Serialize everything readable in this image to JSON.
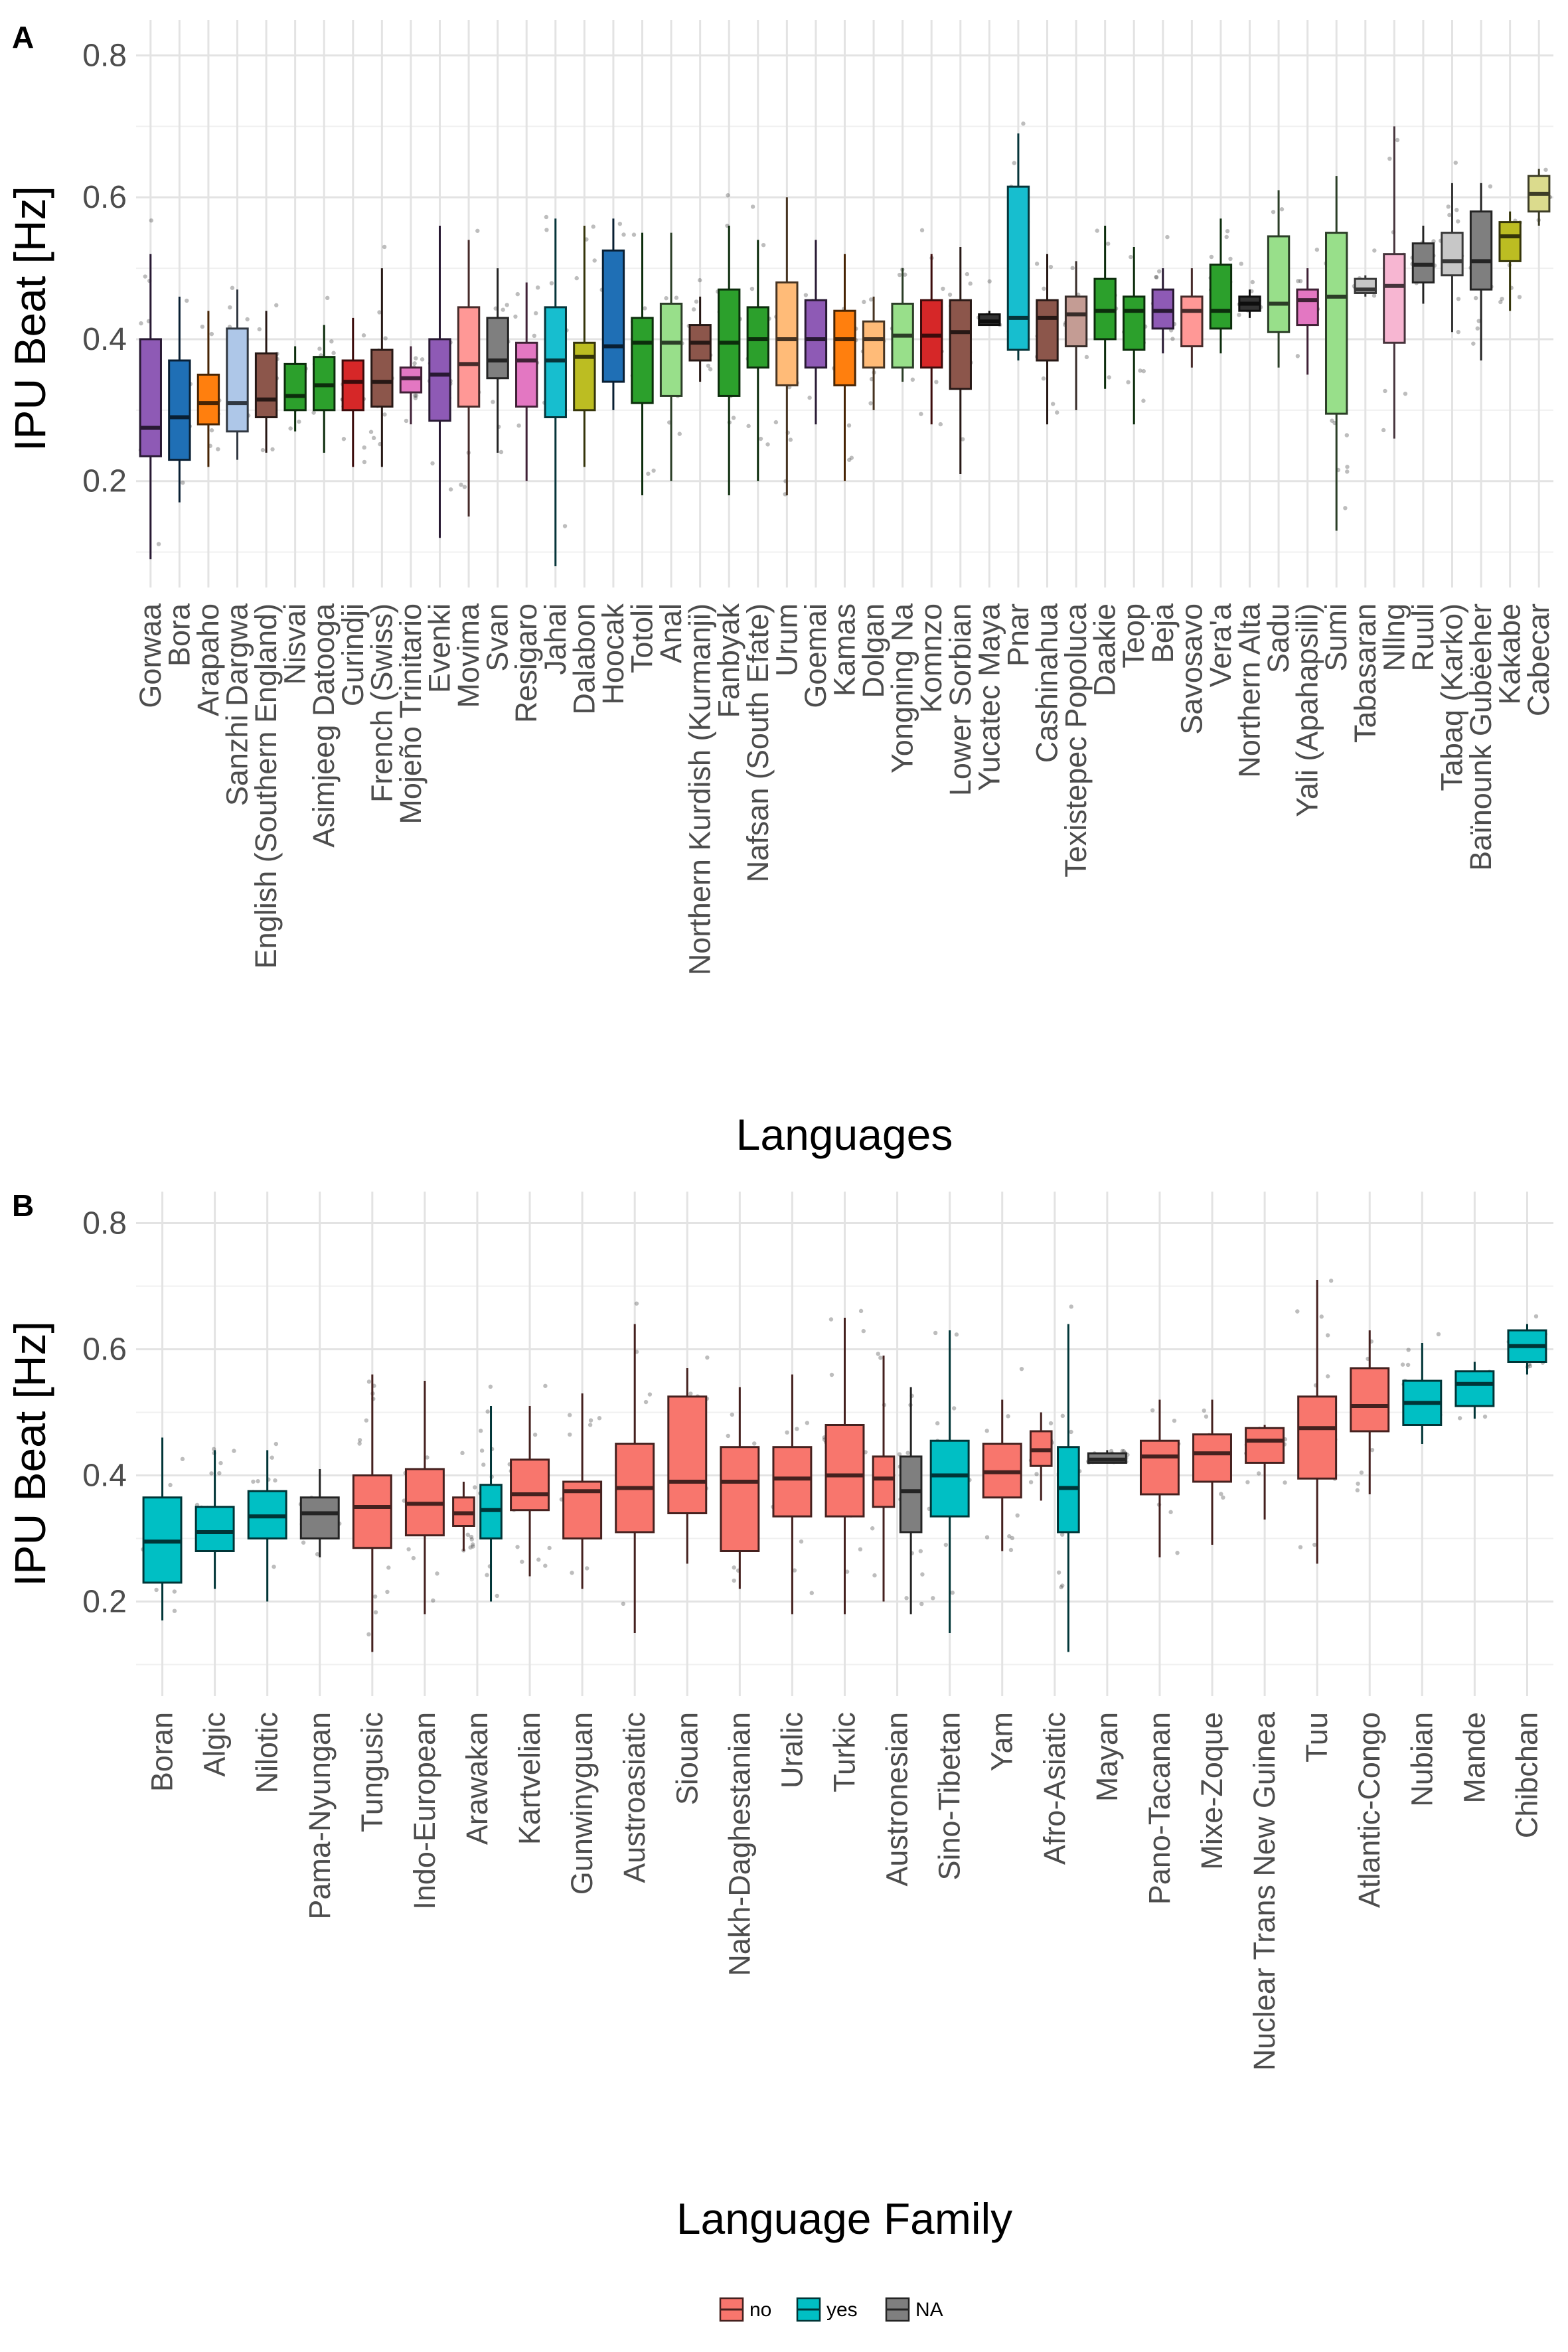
{
  "chart_data": [
    {
      "panel": "A",
      "type": "box",
      "xlabel": "Languages",
      "ylabel": "IPU Beat [Hz]",
      "ylim": [
        0.05,
        0.85
      ],
      "yticks": [
        0.2,
        0.4,
        0.6,
        0.8
      ],
      "grid": true,
      "boxes": [
        {
          "label": "Gorwaa",
          "color": "#8E5AB5",
          "min": 0.09,
          "q1": 0.235,
          "median": 0.275,
          "q3": 0.4,
          "max": 0.52
        },
        {
          "label": "Bora",
          "color": "#1F6FB5",
          "min": 0.17,
          "q1": 0.23,
          "median": 0.29,
          "q3": 0.37,
          "max": 0.46
        },
        {
          "label": "Arapaho",
          "color": "#FF7F0E",
          "min": 0.22,
          "q1": 0.28,
          "median": 0.31,
          "q3": 0.35,
          "max": 0.44
        },
        {
          "label": "Sanzhi Dargwa",
          "color": "#AEC7E8",
          "min": 0.23,
          "q1": 0.27,
          "median": 0.31,
          "q3": 0.415,
          "max": 0.47
        },
        {
          "label": "English (Southern England)",
          "color": "#8C564B",
          "min": 0.24,
          "q1": 0.29,
          "median": 0.315,
          "q3": 0.38,
          "max": 0.44
        },
        {
          "label": "Nisvai",
          "color": "#2CA02C",
          "min": 0.27,
          "q1": 0.3,
          "median": 0.32,
          "q3": 0.365,
          "max": 0.39
        },
        {
          "label": "Asimjeeg Datooga",
          "color": "#2CA02C",
          "min": 0.24,
          "q1": 0.3,
          "median": 0.335,
          "q3": 0.375,
          "max": 0.42
        },
        {
          "label": "Gurindji",
          "color": "#D62728",
          "min": 0.22,
          "q1": 0.3,
          "median": 0.34,
          "q3": 0.37,
          "max": 0.43
        },
        {
          "label": "French (Swiss)",
          "color": "#8C564B",
          "min": 0.22,
          "q1": 0.305,
          "median": 0.34,
          "q3": 0.385,
          "max": 0.5
        },
        {
          "label": "Mojeño Trinitario",
          "color": "#E377C2",
          "min": 0.28,
          "q1": 0.325,
          "median": 0.345,
          "q3": 0.36,
          "max": 0.39
        },
        {
          "label": "Evenki",
          "color": "#8E5AB5",
          "min": 0.12,
          "q1": 0.285,
          "median": 0.35,
          "q3": 0.4,
          "max": 0.56
        },
        {
          "label": "Movima",
          "color": "#FF9896",
          "min": 0.15,
          "q1": 0.305,
          "median": 0.365,
          "q3": 0.445,
          "max": 0.54
        },
        {
          "label": "Svan",
          "color": "#7F7F7F",
          "min": 0.24,
          "q1": 0.345,
          "median": 0.37,
          "q3": 0.43,
          "max": 0.5
        },
        {
          "label": "Resigaro",
          "color": "#E377C2",
          "min": 0.2,
          "q1": 0.305,
          "median": 0.37,
          "q3": 0.395,
          "max": 0.48
        },
        {
          "label": "Jahai",
          "color": "#17BECF",
          "min": 0.08,
          "q1": 0.29,
          "median": 0.37,
          "q3": 0.445,
          "max": 0.57
        },
        {
          "label": "Dalabon",
          "color": "#BCBD22",
          "min": 0.22,
          "q1": 0.3,
          "median": 0.375,
          "q3": 0.395,
          "max": 0.56
        },
        {
          "label": "Hoocak",
          "color": "#1F6FB5",
          "min": 0.3,
          "q1": 0.34,
          "median": 0.39,
          "q3": 0.525,
          "max": 0.57
        },
        {
          "label": "Totoli",
          "color": "#2CA02C",
          "min": 0.18,
          "q1": 0.31,
          "median": 0.395,
          "q3": 0.43,
          "max": 0.55
        },
        {
          "label": "Anal",
          "color": "#98DF8A",
          "min": 0.2,
          "q1": 0.32,
          "median": 0.395,
          "q3": 0.45,
          "max": 0.55
        },
        {
          "label": "Northern Kurdish (Kurmanji)",
          "color": "#8C564B",
          "min": 0.34,
          "q1": 0.37,
          "median": 0.395,
          "q3": 0.42,
          "max": 0.46
        },
        {
          "label": "Fanbyak",
          "color": "#2CA02C",
          "min": 0.18,
          "q1": 0.32,
          "median": 0.395,
          "q3": 0.47,
          "max": 0.56
        },
        {
          "label": "Nafsan (South Efate)",
          "color": "#2CA02C",
          "min": 0.2,
          "q1": 0.36,
          "median": 0.4,
          "q3": 0.445,
          "max": 0.54
        },
        {
          "label": "Urum",
          "color": "#FFBB78",
          "min": 0.18,
          "q1": 0.335,
          "median": 0.4,
          "q3": 0.48,
          "max": 0.6
        },
        {
          "label": "Goemai",
          "color": "#8E5AB5",
          "min": 0.28,
          "q1": 0.36,
          "median": 0.4,
          "q3": 0.455,
          "max": 0.54
        },
        {
          "label": "Kamas",
          "color": "#FF7F0E",
          "min": 0.2,
          "q1": 0.335,
          "median": 0.4,
          "q3": 0.44,
          "max": 0.52
        },
        {
          "label": "Dolgan",
          "color": "#FFBB78",
          "min": 0.3,
          "q1": 0.36,
          "median": 0.4,
          "q3": 0.425,
          "max": 0.46
        },
        {
          "label": "Yongning Na",
          "color": "#98DF8A",
          "min": 0.34,
          "q1": 0.36,
          "median": 0.405,
          "q3": 0.45,
          "max": 0.5
        },
        {
          "label": "Komnzo",
          "color": "#D62728",
          "min": 0.28,
          "q1": 0.36,
          "median": 0.405,
          "q3": 0.455,
          "max": 0.52
        },
        {
          "label": "Lower Sorbian",
          "color": "#8C564B",
          "min": 0.21,
          "q1": 0.33,
          "median": 0.41,
          "q3": 0.455,
          "max": 0.53
        },
        {
          "label": "Yucatec Maya",
          "color": "#333333",
          "min": 0.42,
          "q1": 0.42,
          "median": 0.425,
          "q3": 0.435,
          "max": 0.44
        },
        {
          "label": "Pnar",
          "color": "#17BECF",
          "min": 0.37,
          "q1": 0.385,
          "median": 0.43,
          "q3": 0.615,
          "max": 0.69
        },
        {
          "label": "Cashinahua",
          "color": "#8C564B",
          "min": 0.28,
          "q1": 0.37,
          "median": 0.43,
          "q3": 0.455,
          "max": 0.52
        },
        {
          "label": "Texistepec Popoluca",
          "color": "#C49C94",
          "min": 0.3,
          "q1": 0.39,
          "median": 0.435,
          "q3": 0.46,
          "max": 0.51
        },
        {
          "label": "Daakie",
          "color": "#2CA02C",
          "min": 0.33,
          "q1": 0.4,
          "median": 0.44,
          "q3": 0.485,
          "max": 0.56
        },
        {
          "label": "Teop",
          "color": "#2CA02C",
          "min": 0.28,
          "q1": 0.385,
          "median": 0.44,
          "q3": 0.46,
          "max": 0.53
        },
        {
          "label": "Beja",
          "color": "#8E5AB5",
          "min": 0.38,
          "q1": 0.415,
          "median": 0.44,
          "q3": 0.47,
          "max": 0.5
        },
        {
          "label": "Savosavo",
          "color": "#FF9896",
          "min": 0.36,
          "q1": 0.39,
          "median": 0.44,
          "q3": 0.46,
          "max": 0.5
        },
        {
          "label": "Vera'a",
          "color": "#2CA02C",
          "min": 0.38,
          "q1": 0.415,
          "median": 0.44,
          "q3": 0.505,
          "max": 0.57
        },
        {
          "label": "Northern Alta",
          "color": "#333333",
          "min": 0.43,
          "q1": 0.44,
          "median": 0.45,
          "q3": 0.46,
          "max": 0.47
        },
        {
          "label": "Sadu",
          "color": "#98DF8A",
          "min": 0.36,
          "q1": 0.41,
          "median": 0.45,
          "q3": 0.545,
          "max": 0.61
        },
        {
          "label": "Yali (Apahapsili)",
          "color": "#E377C2",
          "min": 0.35,
          "q1": 0.42,
          "median": 0.455,
          "q3": 0.47,
          "max": 0.5
        },
        {
          "label": "Sumi",
          "color": "#98DF8A",
          "min": 0.13,
          "q1": 0.295,
          "median": 0.46,
          "q3": 0.55,
          "max": 0.63
        },
        {
          "label": "Tabasaran",
          "color": "#C7C7C7",
          "min": 0.46,
          "q1": 0.465,
          "median": 0.47,
          "q3": 0.485,
          "max": 0.49
        },
        {
          "label": "Nllng",
          "color": "#F7B6D2",
          "min": 0.26,
          "q1": 0.395,
          "median": 0.475,
          "q3": 0.52,
          "max": 0.7
        },
        {
          "label": "Ruuli",
          "color": "#7F7F7F",
          "min": 0.45,
          "q1": 0.48,
          "median": 0.505,
          "q3": 0.535,
          "max": 0.56
        },
        {
          "label": "Tabaq (Karko)",
          "color": "#C7C7C7",
          "min": 0.41,
          "q1": 0.49,
          "median": 0.51,
          "q3": 0.55,
          "max": 0.62
        },
        {
          "label": "Baïnounk Gubëeher",
          "color": "#7F7F7F",
          "min": 0.37,
          "q1": 0.47,
          "median": 0.51,
          "q3": 0.58,
          "max": 0.62
        },
        {
          "label": "Kakabe",
          "color": "#BCBD22",
          "min": 0.44,
          "q1": 0.51,
          "median": 0.545,
          "q3": 0.565,
          "max": 0.58
        },
        {
          "label": "Cabecar",
          "color": "#DBDB8D",
          "min": 0.56,
          "q1": 0.58,
          "median": 0.605,
          "q3": 0.63,
          "max": 0.64
        }
      ]
    },
    {
      "panel": "B",
      "type": "box",
      "xlabel": "Language Family",
      "ylabel": "IPU Beat [Hz]",
      "ylim": [
        0.05,
        0.85
      ],
      "yticks": [
        0.2,
        0.4,
        0.6,
        0.8
      ],
      "grid": true,
      "legend": {
        "placement": "bottom",
        "entries": [
          {
            "label": "no",
            "color": "#F8766D"
          },
          {
            "label": "yes",
            "color": "#00BFC4"
          },
          {
            "label": "NA",
            "color": "#7F7F7F"
          }
        ]
      },
      "categories": [
        "Boran",
        "Algic",
        "Nilotic",
        "Pama-Nyungan",
        "Tungusic",
        "Indo-European",
        "Arawakan",
        "Kartvelian",
        "Gunwinyguan",
        "Austroasiatic",
        "Siouan",
        "Nakh-Daghestanian",
        "Uralic",
        "Turkic",
        "Austronesian",
        "Sino-Tibetan",
        "Yam",
        "Afro-Asiatic",
        "Mayan",
        "Pano-Tacanan",
        "Mixe-Zoque",
        "Nuclear Trans New Guinea",
        "Tuu",
        "Atlantic-Congo",
        "Nubian",
        "Mande",
        "Chibchan"
      ],
      "boxes": [
        {
          "cat": 0,
          "group": "yes",
          "min": 0.17,
          "q1": 0.23,
          "median": 0.295,
          "q3": 0.365,
          "max": 0.46
        },
        {
          "cat": 1,
          "group": "yes",
          "min": 0.22,
          "q1": 0.28,
          "median": 0.31,
          "q3": 0.35,
          "max": 0.44
        },
        {
          "cat": 2,
          "group": "yes",
          "min": 0.2,
          "q1": 0.3,
          "median": 0.335,
          "q3": 0.375,
          "max": 0.44
        },
        {
          "cat": 3,
          "group": "NA",
          "min": 0.27,
          "q1": 0.3,
          "median": 0.34,
          "q3": 0.365,
          "max": 0.41
        },
        {
          "cat": 4,
          "group": "no",
          "min": 0.12,
          "q1": 0.285,
          "median": 0.35,
          "q3": 0.4,
          "max": 0.56
        },
        {
          "cat": 5,
          "group": "no",
          "min": 0.18,
          "q1": 0.305,
          "median": 0.355,
          "q3": 0.41,
          "max": 0.55
        },
        {
          "cat": 6,
          "group": "no",
          "min": 0.28,
          "q1": 0.32,
          "median": 0.34,
          "q3": 0.365,
          "max": 0.39,
          "offset": -0.26
        },
        {
          "cat": 6,
          "group": "yes",
          "min": 0.2,
          "q1": 0.3,
          "median": 0.345,
          "q3": 0.385,
          "max": 0.51,
          "offset": 0.26
        },
        {
          "cat": 7,
          "group": "no",
          "min": 0.24,
          "q1": 0.345,
          "median": 0.37,
          "q3": 0.425,
          "max": 0.51
        },
        {
          "cat": 8,
          "group": "no",
          "min": 0.22,
          "q1": 0.3,
          "median": 0.375,
          "q3": 0.39,
          "max": 0.53
        },
        {
          "cat": 9,
          "group": "no",
          "min": 0.15,
          "q1": 0.31,
          "median": 0.38,
          "q3": 0.45,
          "max": 0.64
        },
        {
          "cat": 10,
          "group": "no",
          "min": 0.26,
          "q1": 0.34,
          "median": 0.39,
          "q3": 0.525,
          "max": 0.57
        },
        {
          "cat": 11,
          "group": "no",
          "min": 0.22,
          "q1": 0.28,
          "median": 0.39,
          "q3": 0.445,
          "max": 0.54
        },
        {
          "cat": 12,
          "group": "no",
          "min": 0.18,
          "q1": 0.335,
          "median": 0.395,
          "q3": 0.445,
          "max": 0.56
        },
        {
          "cat": 13,
          "group": "no",
          "min": 0.18,
          "q1": 0.335,
          "median": 0.4,
          "q3": 0.48,
          "max": 0.65
        },
        {
          "cat": 14,
          "group": "no",
          "min": 0.2,
          "q1": 0.35,
          "median": 0.395,
          "q3": 0.43,
          "max": 0.59,
          "offset": -0.26
        },
        {
          "cat": 14,
          "group": "NA",
          "min": 0.18,
          "q1": 0.31,
          "median": 0.375,
          "q3": 0.43,
          "max": 0.54,
          "offset": 0.26
        },
        {
          "cat": 15,
          "group": "yes",
          "min": 0.15,
          "q1": 0.335,
          "median": 0.4,
          "q3": 0.455,
          "max": 0.63
        },
        {
          "cat": 16,
          "group": "no",
          "min": 0.28,
          "q1": 0.365,
          "median": 0.405,
          "q3": 0.45,
          "max": 0.52
        },
        {
          "cat": 17,
          "group": "no",
          "min": 0.36,
          "q1": 0.415,
          "median": 0.44,
          "q3": 0.47,
          "max": 0.5,
          "offset": -0.26
        },
        {
          "cat": 17,
          "group": "yes",
          "min": 0.12,
          "q1": 0.31,
          "median": 0.38,
          "q3": 0.445,
          "max": 0.64,
          "offset": 0.26
        },
        {
          "cat": 18,
          "group": "NA",
          "min": 0.42,
          "q1": 0.42,
          "median": 0.425,
          "q3": 0.435,
          "max": 0.44
        },
        {
          "cat": 19,
          "group": "no",
          "min": 0.27,
          "q1": 0.37,
          "median": 0.43,
          "q3": 0.455,
          "max": 0.52
        },
        {
          "cat": 20,
          "group": "no",
          "min": 0.29,
          "q1": 0.39,
          "median": 0.435,
          "q3": 0.465,
          "max": 0.52
        },
        {
          "cat": 21,
          "group": "no",
          "min": 0.33,
          "q1": 0.42,
          "median": 0.455,
          "q3": 0.475,
          "max": 0.48
        },
        {
          "cat": 22,
          "group": "no",
          "min": 0.26,
          "q1": 0.395,
          "median": 0.475,
          "q3": 0.525,
          "max": 0.71
        },
        {
          "cat": 23,
          "group": "no",
          "min": 0.37,
          "q1": 0.47,
          "median": 0.51,
          "q3": 0.57,
          "max": 0.63
        },
        {
          "cat": 24,
          "group": "yes",
          "min": 0.45,
          "q1": 0.48,
          "median": 0.515,
          "q3": 0.55,
          "max": 0.61
        },
        {
          "cat": 25,
          "group": "yes",
          "min": 0.49,
          "q1": 0.51,
          "median": 0.545,
          "q3": 0.565,
          "max": 0.58
        },
        {
          "cat": 26,
          "group": "yes",
          "min": 0.56,
          "q1": 0.58,
          "median": 0.605,
          "q3": 0.63,
          "max": 0.64
        }
      ]
    }
  ],
  "panels": {
    "a_tag": "A",
    "b_tag": "B"
  }
}
